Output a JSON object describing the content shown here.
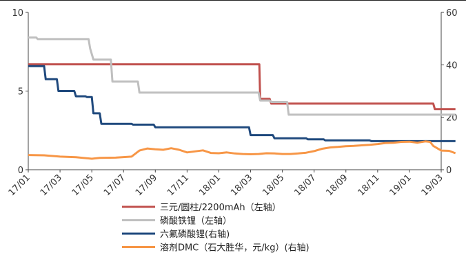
{
  "chart_data": {
    "type": "line",
    "x_labels": [
      "17/01",
      "17/03",
      "17/05",
      "17/07",
      "17/09",
      "17/11",
      "18/01",
      "18/03",
      "18/05",
      "18/07",
      "18/09",
      "18/11",
      "19/01",
      "19/03"
    ],
    "left_axis": {
      "min": 0,
      "max": 10,
      "ticks": [
        "0",
        "5",
        "10"
      ]
    },
    "right_axis": {
      "min": 0,
      "max": 60,
      "ticks": [
        "0",
        "20",
        "40",
        "60"
      ]
    },
    "grid": false,
    "legend_position": "bottom",
    "series": [
      {
        "name": "三元/圆柱/2200mAh（左轴）",
        "axis": "left",
        "color": "#C0504D",
        "points": [
          [
            0,
            6.7
          ],
          [
            14,
            6.7
          ],
          [
            14.55,
            6.7
          ],
          [
            14.6,
            4.5
          ],
          [
            15.2,
            4.5
          ],
          [
            15.3,
            4.2
          ],
          [
            25.5,
            4.2
          ],
          [
            25.6,
            3.85
          ],
          [
            26.9,
            3.85
          ]
        ]
      },
      {
        "name": "磷酸铁锂（左轴）",
        "axis": "left",
        "color": "#BFBFBF",
        "points": [
          [
            0,
            8.4
          ],
          [
            0.5,
            8.4
          ],
          [
            0.6,
            8.3
          ],
          [
            3.8,
            8.3
          ],
          [
            3.9,
            7.7
          ],
          [
            4.1,
            7.0
          ],
          [
            5.2,
            7.0
          ],
          [
            5.3,
            5.6
          ],
          [
            6.9,
            5.6
          ],
          [
            7.0,
            4.9
          ],
          [
            14.5,
            4.9
          ],
          [
            14.6,
            4.4
          ],
          [
            15.2,
            4.4
          ],
          [
            15.3,
            4.3
          ],
          [
            16.3,
            4.3
          ],
          [
            16.4,
            3.5
          ],
          [
            26.9,
            3.5
          ]
        ]
      },
      {
        "name": "六氟磷酸锂(右轴)",
        "axis": "right",
        "color": "#1F497D",
        "points": [
          [
            0,
            39.5
          ],
          [
            1.0,
            39.5
          ],
          [
            1.1,
            34.5
          ],
          [
            1.8,
            34.5
          ],
          [
            1.9,
            30
          ],
          [
            2.9,
            30
          ],
          [
            3.0,
            28
          ],
          [
            3.6,
            28
          ],
          [
            3.7,
            27.7
          ],
          [
            4.0,
            27.7
          ],
          [
            4.1,
            21.5
          ],
          [
            4.5,
            21.5
          ],
          [
            4.6,
            17.5
          ],
          [
            6.5,
            17.5
          ],
          [
            6.6,
            17.2
          ],
          [
            7.9,
            17.2
          ],
          [
            8.0,
            16.2
          ],
          [
            13.9,
            16.2
          ],
          [
            14.0,
            13.2
          ],
          [
            15.4,
            13.2
          ],
          [
            15.5,
            12
          ],
          [
            17.5,
            12
          ],
          [
            17.6,
            11.6
          ],
          [
            18.6,
            11.6
          ],
          [
            18.7,
            11.2
          ],
          [
            21.5,
            11.2
          ],
          [
            21.6,
            10.9
          ],
          [
            26.9,
            10.9
          ]
        ]
      },
      {
        "name": "溶剂DMC（石大胜华，元/kg）(右轴)",
        "axis": "right",
        "color": "#F79646",
        "points": [
          [
            0,
            5.6
          ],
          [
            1.0,
            5.5
          ],
          [
            2.0,
            5.0
          ],
          [
            3.0,
            4.8
          ],
          [
            4.0,
            4.2
          ],
          [
            4.5,
            4.5
          ],
          [
            5.5,
            4.6
          ],
          [
            6.5,
            5.0
          ],
          [
            7.0,
            7.3
          ],
          [
            7.5,
            8.1
          ],
          [
            8.0,
            7.8
          ],
          [
            8.5,
            7.6
          ],
          [
            9.0,
            8.2
          ],
          [
            9.5,
            7.6
          ],
          [
            10.0,
            6.6
          ],
          [
            10.5,
            7.0
          ],
          [
            11.0,
            7.4
          ],
          [
            11.5,
            6.4
          ],
          [
            12.0,
            6.3
          ],
          [
            12.5,
            6.6
          ],
          [
            13.0,
            6.2
          ],
          [
            13.5,
            6.0
          ],
          [
            14.0,
            5.9
          ],
          [
            14.5,
            6.0
          ],
          [
            15.0,
            6.3
          ],
          [
            15.5,
            6.2
          ],
          [
            16.0,
            6.0
          ],
          [
            16.5,
            6.0
          ],
          [
            17.0,
            6.2
          ],
          [
            17.5,
            6.5
          ],
          [
            18.0,
            7.1
          ],
          [
            18.5,
            8.0
          ],
          [
            19.0,
            8.5
          ],
          [
            19.5,
            8.7
          ],
          [
            20.0,
            9.0
          ],
          [
            20.5,
            9.1
          ],
          [
            21.0,
            9.3
          ],
          [
            21.5,
            9.5
          ],
          [
            22.0,
            9.8
          ],
          [
            22.5,
            10.2
          ],
          [
            23.0,
            10.3
          ],
          [
            23.5,
            10.6
          ],
          [
            24.0,
            10.7
          ],
          [
            24.5,
            10.3
          ],
          [
            25.0,
            10.8
          ],
          [
            25.3,
            10.6
          ],
          [
            25.5,
            9.1
          ],
          [
            26.0,
            7.3
          ],
          [
            26.5,
            7.2
          ],
          [
            26.9,
            6.3
          ]
        ]
      }
    ]
  }
}
